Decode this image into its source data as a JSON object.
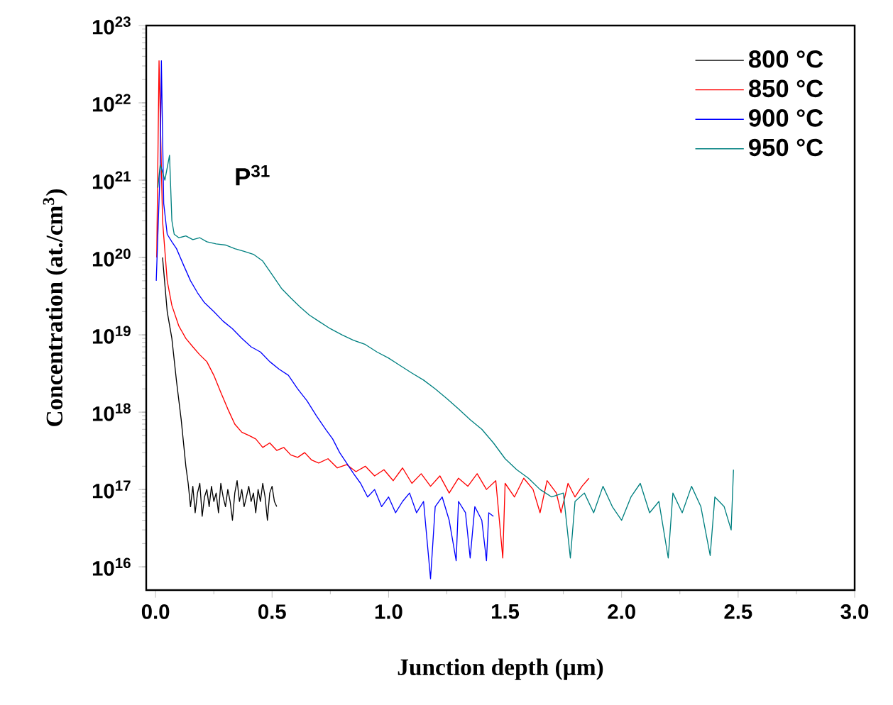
{
  "chart_data": {
    "type": "line",
    "xlabel": "Junction depth (µm)",
    "ylabel": "Concentration (at./cm$^{3}$)",
    "annotations": [
      "P$^{31}$"
    ],
    "log": "y",
    "legend": "top right",
    "marker": "none",
    "line_style": "solid",
    "xlim": [
      -0.04,
      3.0
    ],
    "ylim": [
      5000000000000000.0,
      1e+23
    ],
    "xticks": [
      {
        "value": 0,
        "label": "0.0"
      },
      {
        "value": 0.5,
        "label": "0.5"
      },
      {
        "value": 1,
        "label": "1.0"
      },
      {
        "value": 1.5,
        "label": "1.5"
      },
      {
        "value": 2,
        "label": "2.0"
      },
      {
        "value": 2.5,
        "label": "2.5"
      },
      {
        "value": 3,
        "label": "3.0"
      }
    ],
    "yticks": [
      {
        "value": 1e+16,
        "label": "10$^{16}$"
      },
      {
        "value": 1e+17,
        "label": "10$^{17}$"
      },
      {
        "value": 1e+18,
        "label": "10$^{18}$"
      },
      {
        "value": 1e+19,
        "label": "10$^{19}$"
      },
      {
        "value": 1e+20,
        "label": "10$^{20}$"
      },
      {
        "value": 1e+21,
        "label": "10$^{21}$"
      },
      {
        "value": 1e+22,
        "label": "10$^{22}$"
      },
      {
        "value": 1e+23,
        "label": "10$^{23}$"
      }
    ],
    "series": [
      {
        "name": "800 °C",
        "color": "#000000",
        "x": [
          0.03,
          0.05,
          0.07,
          0.09,
          0.11,
          0.12,
          0.13,
          0.14,
          0.15,
          0.16,
          0.17,
          0.18,
          0.19,
          0.2,
          0.21,
          0.22,
          0.23,
          0.24,
          0.25,
          0.26,
          0.27,
          0.28,
          0.29,
          0.3,
          0.31,
          0.32,
          0.33,
          0.34,
          0.35,
          0.36,
          0.37,
          0.38,
          0.39,
          0.4,
          0.41,
          0.42,
          0.43,
          0.44,
          0.45,
          0.46,
          0.47,
          0.48,
          0.49,
          0.5,
          0.51,
          0.52
        ],
        "values": [
          1e+20,
          2e+19,
          9e+18,
          2.5e+18,
          8e+17,
          4e+17,
          2e+17,
          1.2e+17,
          6e+16,
          1.1e+17,
          5e+16,
          9e+16,
          1.2e+17,
          4.5e+16,
          8e+16,
          1e+17,
          6e+16,
          1.1e+17,
          7e+16,
          9e+16,
          5e+16,
          1.2e+17,
          8e+16,
          6e+16,
          1e+17,
          7e+16,
          4e+16,
          9e+16,
          1.3e+17,
          7e+16,
          1e+17,
          6e+16,
          8e+16,
          1.1e+17,
          7e+16,
          9e+16,
          5e+16,
          1e+17,
          7e+16,
          1.2e+17,
          8e+16,
          4e+16,
          9e+16,
          1.1e+17,
          7e+16,
          6e+16
        ]
      },
      {
        "name": "850 °C",
        "color": "#ff0000",
        "x": [
          0.005,
          0.015,
          0.03,
          0.05,
          0.07,
          0.1,
          0.13,
          0.16,
          0.19,
          0.22,
          0.25,
          0.28,
          0.31,
          0.34,
          0.37,
          0.4,
          0.43,
          0.46,
          0.49,
          0.52,
          0.55,
          0.58,
          0.61,
          0.64,
          0.67,
          0.7,
          0.74,
          0.78,
          0.82,
          0.86,
          0.9,
          0.94,
          0.98,
          1.02,
          1.06,
          1.1,
          1.14,
          1.18,
          1.22,
          1.26,
          1.3,
          1.34,
          1.38,
          1.42,
          1.46,
          1.49,
          1.5,
          1.54,
          1.58,
          1.62,
          1.65,
          1.68,
          1.72,
          1.74,
          1.77,
          1.8,
          1.83,
          1.86
        ],
        "values": [
          1e+20,
          3.5e+22,
          3e+20,
          5e+19,
          2.4e+19,
          1.3e+19,
          9e+18,
          7e+18,
          5.5e+18,
          4.5e+18,
          3e+18,
          1.8e+18,
          1.1e+18,
          7e+17,
          5.5e+17,
          5e+17,
          4.5e+17,
          3.5e+17,
          4e+17,
          3.2e+17,
          3.5e+17,
          2.8e+17,
          2.6e+17,
          3e+17,
          2.4e+17,
          2.2e+17,
          2.5e+17,
          1.9e+17,
          2.1e+17,
          1.7e+17,
          2e+17,
          1.5e+17,
          1.8e+17,
          1.3e+17,
          1.9e+17,
          1.2e+17,
          1.6e+17,
          1.1e+17,
          1.5e+17,
          9e+16,
          1.4e+17,
          1.1e+17,
          1.6e+17,
          1e+17,
          1.3e+17,
          1.3e+16,
          1.2e+17,
          8e+16,
          1.4e+17,
          1e+17,
          5e+16,
          1.3e+17,
          9e+16,
          5e+16,
          1.2e+17,
          8e+16,
          1.1e+17,
          1.4e+17
        ]
      },
      {
        "name": "900 °C",
        "color": "#0000ff",
        "x": [
          0.003,
          0.02,
          0.025,
          0.035,
          0.05,
          0.07,
          0.09,
          0.12,
          0.15,
          0.18,
          0.21,
          0.25,
          0.29,
          0.33,
          0.37,
          0.41,
          0.45,
          0.49,
          0.53,
          0.57,
          0.61,
          0.65,
          0.69,
          0.73,
          0.76,
          0.79,
          0.82,
          0.85,
          0.88,
          0.91,
          0.94,
          0.97,
          1.0,
          1.03,
          1.06,
          1.09,
          1.12,
          1.15,
          1.18,
          1.2,
          1.23,
          1.26,
          1.29,
          1.3,
          1.33,
          1.35,
          1.37,
          1.4,
          1.42,
          1.43,
          1.45
        ],
        "values": [
          5e+19,
          1.5e+21,
          3.5e+22,
          5e+20,
          2e+20,
          1.6e+20,
          1.3e+20,
          8e+19,
          5e+19,
          3.5e+19,
          2.6e+19,
          2e+19,
          1.5e+19,
          1.2e+19,
          9e+18,
          7e+18,
          6e+18,
          4.5e+18,
          3.6e+18,
          3e+18,
          2e+18,
          1.4e+18,
          9e+17,
          6e+17,
          4.5e+17,
          3e+17,
          2.2e+17,
          1.6e+17,
          1.2e+17,
          8e+16,
          1e+17,
          6e+16,
          8e+16,
          5e+16,
          7e+16,
          9e+16,
          5e+16,
          7e+16,
          7000000000000000.0,
          6e+16,
          8e+16,
          4e+16,
          1.2e+16,
          7e+16,
          5e+16,
          1.3e+16,
          6e+16,
          4e+16,
          1.2e+16,
          5e+16,
          4.5e+16
        ]
      },
      {
        "name": "950 °C",
        "color": "#008080",
        "x": [
          0.01,
          0.02,
          0.04,
          0.06,
          0.07,
          0.08,
          0.1,
          0.13,
          0.16,
          0.19,
          0.22,
          0.26,
          0.3,
          0.34,
          0.38,
          0.42,
          0.46,
          0.5,
          0.54,
          0.58,
          0.62,
          0.66,
          0.7,
          0.75,
          0.8,
          0.85,
          0.9,
          0.95,
          1.0,
          1.05,
          1.1,
          1.15,
          1.2,
          1.25,
          1.3,
          1.35,
          1.4,
          1.45,
          1.5,
          1.55,
          1.6,
          1.65,
          1.7,
          1.75,
          1.78,
          1.8,
          1.84,
          1.88,
          1.92,
          1.96,
          2.0,
          2.04,
          2.08,
          2.12,
          2.16,
          2.2,
          2.22,
          2.26,
          2.3,
          2.34,
          2.38,
          2.4,
          2.44,
          2.47,
          2.48
        ],
        "values": [
          8e+20,
          1.6e+21,
          1e+21,
          2.1e+21,
          3e+20,
          2e+20,
          1.8e+20,
          1.9e+20,
          1.7e+20,
          1.8e+20,
          1.6e+20,
          1.5e+20,
          1.45e+20,
          1.3e+20,
          1.2e+20,
          1.1e+20,
          9e+19,
          6e+19,
          4e+19,
          3e+19,
          2.3e+19,
          1.8e+19,
          1.5e+19,
          1.2e+19,
          1e+19,
          8.5e+18,
          7.5e+18,
          6e+18,
          5e+18,
          4e+18,
          3.2e+18,
          2.6e+18,
          2e+18,
          1.5e+18,
          1.1e+18,
          8e+17,
          6e+17,
          4e+17,
          2.5e+17,
          1.8e+17,
          1.4e+17,
          1e+17,
          8e+16,
          9e+16,
          1.3e+16,
          7e+16,
          9e+16,
          5e+16,
          1.1e+17,
          6e+16,
          4e+16,
          8e+16,
          1.2e+17,
          5e+16,
          7e+16,
          1.3e+16,
          9e+16,
          5e+16,
          1.1e+17,
          6e+16,
          1.4e+16,
          8e+16,
          6e+16,
          3e+16,
          1.8e+17
        ]
      }
    ]
  }
}
